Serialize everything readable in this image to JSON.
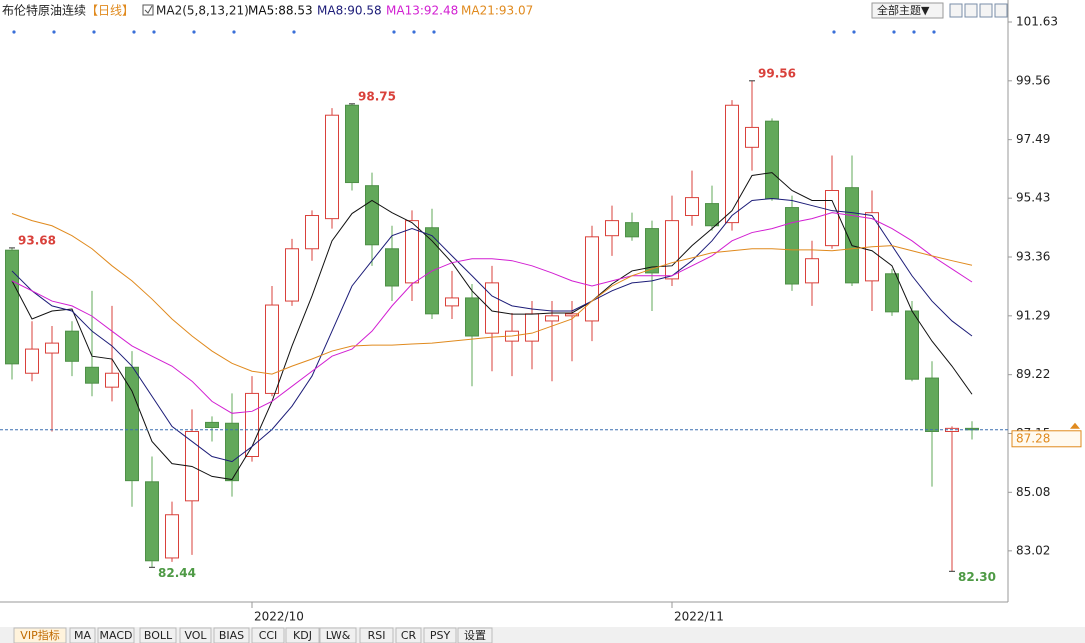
{
  "header": {
    "title": "布伦特原油连续",
    "period": "【日线】",
    "indicator": "MA2(5,8,13,21)"
  },
  "toolbar": {
    "theme_button": "全部主题▼"
  },
  "chart_data": {
    "type": "candlestick",
    "categories": [
      null,
      null,
      null,
      null,
      null,
      null,
      null,
      null,
      null,
      null,
      null,
      null,
      "2022/10",
      null,
      null,
      null,
      null,
      null,
      null,
      null,
      null,
      null,
      null,
      null,
      null,
      null,
      null,
      null,
      null,
      null,
      null,
      null,
      null,
      "2022/11",
      null,
      null,
      null,
      null,
      null,
      null,
      null,
      null,
      null,
      null,
      null,
      null,
      null,
      null,
      null
    ],
    "open": [
      93.6,
      89.27,
      89.98,
      90.75,
      89.48,
      88.78,
      89.48,
      85.45,
      82.77,
      84.78,
      87.54,
      87.51,
      86.34,
      88.56,
      91.81,
      93.65,
      94.71,
      98.7,
      95.87,
      93.65,
      92.45,
      94.39,
      91.64,
      91.92,
      90.68,
      90.4,
      90.4,
      91.11,
      91.29,
      91.11,
      94.11,
      94.57,
      94.36,
      92.59,
      94.82,
      95.24,
      94.57,
      97.22,
      98.14,
      95.1,
      92.45,
      93.76,
      95.8,
      92.52,
      92.77,
      91.46,
      89.1,
      87.22,
      87.33
    ],
    "high": [
      93.68,
      91.1,
      90.93,
      91.1,
      92.17,
      91.64,
      90.05,
      86.34,
      84.75,
      88.0,
      87.75,
      88.56,
      89.17,
      92.34,
      94.0,
      95.0,
      98.6,
      98.75,
      96.33,
      94.46,
      95.0,
      95.06,
      92.87,
      92.41,
      93.05,
      91.39,
      91.81,
      91.81,
      91.81,
      94.46,
      95.17,
      94.92,
      94.64,
      95.52,
      96.4,
      95.87,
      98.88,
      99.56,
      98.24,
      95.52,
      93.93,
      96.93,
      96.93,
      95.7,
      92.94,
      91.81,
      89.69,
      87.4,
      87.58
    ],
    "low": [
      89.05,
      88.99,
      87.22,
      89.17,
      88.46,
      88.28,
      84.57,
      82.44,
      82.63,
      82.88,
      86.87,
      84.93,
      86.16,
      88.46,
      91.64,
      93.23,
      94.36,
      95.7,
      93.05,
      91.81,
      91.81,
      91.18,
      91.18,
      88.81,
      89.34,
      89.17,
      89.41,
      88.99,
      89.69,
      90.4,
      93.4,
      93.93,
      91.46,
      92.34,
      94.46,
      94.29,
      94.29,
      96.4,
      95.34,
      92.17,
      91.64,
      93.65,
      92.34,
      91.46,
      91.29,
      88.99,
      85.28,
      82.3,
      86.94
    ],
    "close": [
      89.6,
      90.12,
      90.33,
      89.69,
      88.92,
      89.27,
      85.49,
      82.67,
      84.29,
      87.22,
      87.36,
      85.49,
      88.56,
      91.67,
      93.65,
      94.82,
      98.35,
      95.98,
      93.79,
      92.34,
      94.64,
      91.36,
      91.92,
      90.58,
      92.45,
      90.75,
      91.36,
      91.29,
      91.36,
      94.07,
      94.64,
      94.07,
      92.8,
      94.64,
      95.45,
      94.46,
      98.7,
      97.92,
      95.41,
      92.41,
      93.3,
      95.7,
      92.45,
      94.92,
      91.43,
      89.06,
      87.22,
      87.33,
      87.28
    ],
    "up_color": "#d9413b",
    "down_color": "#62a85a",
    "ylim": [
      81.22,
      101.7
    ],
    "yticks": [
      101.63,
      99.56,
      97.49,
      95.43,
      93.36,
      91.29,
      89.22,
      87.15,
      85.08,
      83.02
    ],
    "series": [
      {
        "name": "MA5:88.53",
        "color": "#111111",
        "values": [
          92.52,
          91.18,
          91.46,
          91.53,
          89.87,
          89.77,
          88.64,
          86.87,
          86.09,
          85.99,
          85.64,
          85.53,
          86.69,
          88.28,
          90.23,
          91.99,
          93.93,
          94.89,
          95.35,
          94.92,
          94.57,
          93.93,
          93.16,
          92.17,
          91.46,
          91.35,
          91.35,
          91.39,
          91.39,
          91.81,
          92.41,
          92.87,
          93.01,
          93.05,
          93.76,
          94.36,
          94.99,
          96.23,
          96.33,
          95.7,
          95.35,
          95.35,
          93.76,
          93.58,
          93.05,
          91.46,
          90.4,
          89.52,
          88.53
        ]
      },
      {
        "name": "MA8:90.58",
        "color": "#1c1c78",
        "values": [
          92.87,
          92.17,
          91.64,
          91.46,
          90.75,
          90.23,
          89.52,
          88.46,
          87.4,
          86.87,
          86.34,
          86.16,
          86.69,
          87.29,
          88.11,
          89.17,
          90.75,
          92.34,
          93.23,
          94.11,
          94.36,
          94.11,
          93.4,
          92.7,
          91.99,
          91.64,
          91.53,
          91.46,
          91.46,
          91.81,
          92.17,
          92.45,
          92.52,
          92.7,
          93.23,
          93.93,
          94.82,
          95.35,
          95.42,
          95.35,
          95.17,
          94.99,
          94.92,
          94.82,
          93.76,
          92.7,
          91.81,
          91.11,
          90.58
        ]
      },
      {
        "name": "MA13:92.48",
        "color": "#d21fd2",
        "values": [
          92.52,
          92.17,
          91.81,
          91.64,
          91.28,
          90.75,
          90.23,
          89.87,
          89.52,
          88.99,
          88.28,
          87.86,
          87.93,
          88.28,
          88.81,
          89.34,
          89.87,
          90.12,
          90.75,
          91.64,
          92.41,
          92.87,
          93.16,
          93.3,
          93.3,
          93.23,
          93.05,
          92.8,
          92.52,
          92.34,
          92.52,
          92.7,
          92.7,
          92.7,
          93.05,
          93.4,
          93.93,
          94.22,
          94.36,
          94.57,
          94.71,
          94.92,
          94.82,
          94.71,
          94.36,
          93.93,
          93.4,
          92.94,
          92.48
        ]
      },
      {
        "name": "MA21:93.07",
        "color": "#e08a1e",
        "values": [
          94.89,
          94.64,
          94.46,
          94.11,
          93.65,
          93.05,
          92.52,
          91.88,
          91.18,
          90.58,
          90.05,
          89.62,
          89.34,
          89.24,
          89.52,
          89.77,
          90.05,
          90.23,
          90.26,
          90.26,
          90.3,
          90.33,
          90.4,
          90.47,
          90.54,
          90.58,
          90.68,
          90.93,
          91.18,
          91.81,
          92.34,
          92.7,
          92.94,
          93.16,
          93.33,
          93.51,
          93.58,
          93.65,
          93.65,
          93.61,
          93.61,
          93.58,
          93.65,
          93.72,
          93.76,
          93.58,
          93.4,
          93.23,
          93.07
        ]
      }
    ],
    "annotations": [
      {
        "text": "93.68",
        "index": 0,
        "kind": "high"
      },
      {
        "text": "98.75",
        "index": 17,
        "kind": "high"
      },
      {
        "text": "99.56",
        "index": 37,
        "kind": "high"
      },
      {
        "text": "82.44",
        "index": 7,
        "kind": "low"
      },
      {
        "text": "82.30",
        "index": 47,
        "kind": "low"
      }
    ],
    "current_price": 87.28,
    "current_price_color": "#e08a1e"
  },
  "tabs": [
    "VIP指标",
    "MA",
    "MACD",
    "BOLL",
    "VOL",
    "BIAS",
    "CCI",
    "KDJ",
    "LW&",
    "RSI",
    "CR",
    "PSY",
    "设置"
  ]
}
